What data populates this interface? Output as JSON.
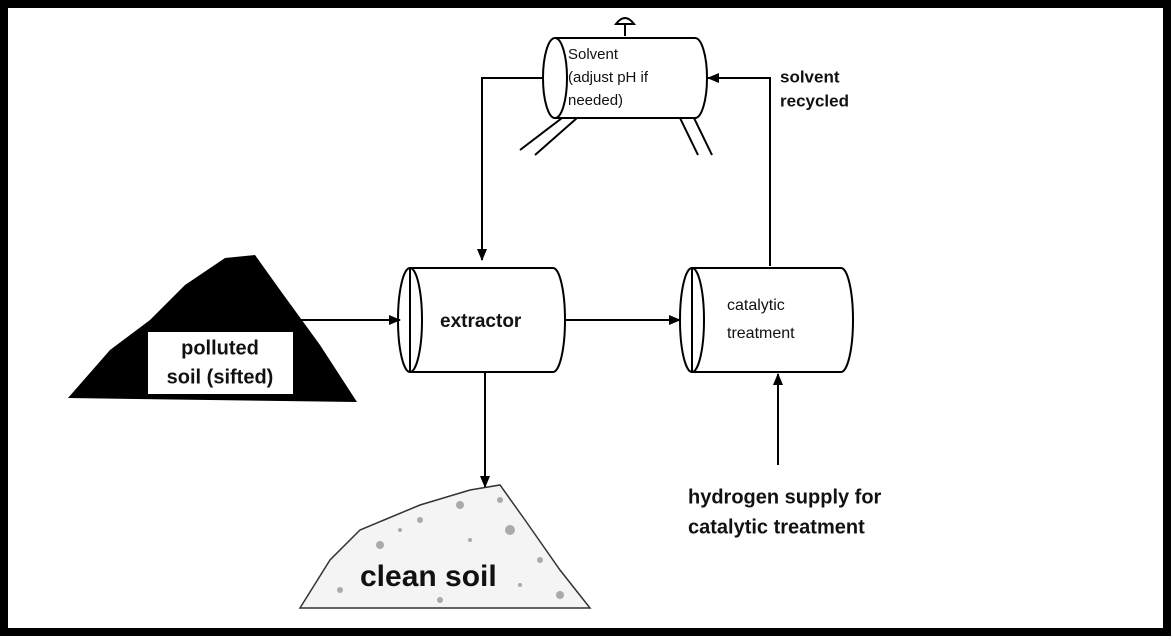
{
  "nodes": [
    {
      "id": "solvent",
      "lines": [
        "Solvent",
        "(adjust pH if",
        "needed)"
      ]
    },
    {
      "id": "extractor",
      "lines": [
        "extractor"
      ]
    },
    {
      "id": "catalytic",
      "lines": [
        "catalytic",
        "treatment"
      ]
    },
    {
      "id": "polluted",
      "lines": [
        "polluted",
        "soil (sifted)"
      ]
    },
    {
      "id": "clean",
      "lines": [
        "clean soil"
      ]
    }
  ],
  "annotations": [
    {
      "lines": [
        "solvent",
        "recycled"
      ]
    },
    {
      "lines": [
        "hydrogen supply for",
        "catalytic treatment"
      ]
    }
  ]
}
